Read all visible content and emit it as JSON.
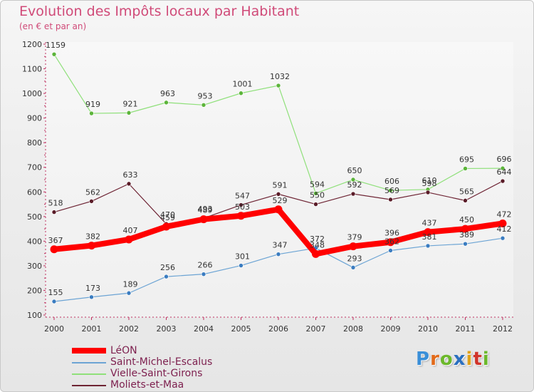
{
  "title": "Evolution des Impôts locaux par Habitant",
  "subtitle": "(en € et par an)",
  "logo": {
    "text": "Proxiti",
    "colors": [
      "#3a8fd8",
      "#e26a1a",
      "#6bb82a",
      "#2a6fc0",
      "#e0a21a",
      "#d0342a",
      "#6bb82a"
    ]
  },
  "chart_data": {
    "type": "line",
    "title": "Evolution des Impôts locaux par Habitant",
    "ylabel": "(en € et par an)",
    "xlabel": "",
    "ylim": [
      100,
      1200
    ],
    "yticks": [
      100,
      200,
      300,
      400,
      500,
      600,
      700,
      800,
      900,
      1000,
      1100,
      1200
    ],
    "categories": [
      "2000",
      "2001",
      "2002",
      "2003",
      "2004",
      "2005",
      "2006",
      "2007",
      "2008",
      "2009",
      "2010",
      "2011",
      "2012"
    ],
    "grid": false,
    "legend": "bottom-left",
    "series": [
      {
        "name": "Vielle-Saint-Girons",
        "color": "#8fe07a",
        "marker": "#5cb43a",
        "values": [
          1159,
          919,
          921,
          963,
          953,
          1001,
          1032,
          594,
          650,
          606,
          610,
          695,
          696
        ],
        "labels": [
          "1159",
          "919",
          "921",
          "963",
          "953",
          "1001",
          "1032",
          "594",
          "650",
          "606",
          "610",
          "695",
          "696"
        ]
      },
      {
        "name": "Moliets-et-Maa",
        "color": "#6e2434",
        "marker": "#5a1c28",
        "values": [
          518,
          562,
          633,
          470,
          493,
          547,
          591,
          550,
          592,
          569,
          598,
          565,
          644
        ],
        "labels": [
          "518",
          "562",
          "633",
          "470",
          "493",
          "547",
          "591",
          "550",
          "592",
          "569",
          "598",
          "565",
          "644"
        ]
      },
      {
        "name": "Saint-Michel-Escalus",
        "color": "#6ca4d4",
        "marker": "#3a7cc0",
        "values": [
          155,
          173,
          189,
          256,
          266,
          301,
          347,
          372,
          293,
          362,
          381,
          389,
          412
        ],
        "labels": [
          "155",
          "173",
          "189",
          "256",
          "266",
          "301",
          "347",
          "372",
          "293",
          "362",
          "381",
          "389",
          "412"
        ]
      },
      {
        "name": "LéON",
        "color": "#ff0000",
        "marker": "#ff0000",
        "values": [
          367,
          382,
          407,
          459,
          489,
          503,
          529,
          348,
          379,
          396,
          437,
          450,
          472
        ],
        "labels": [
          "367",
          "382",
          "407",
          "459",
          "489",
          "503",
          "529",
          "348",
          "379",
          "396",
          "437",
          "450",
          "472"
        ]
      }
    ]
  },
  "legend": [
    {
      "label": "LéON",
      "color": "#ff0000",
      "weight": 8
    },
    {
      "label": "Saint-Michel-Escalus",
      "color": "#6ca4d4",
      "weight": 2
    },
    {
      "label": "Vielle-Saint-Girons",
      "color": "#8fe07a",
      "weight": 2
    },
    {
      "label": "Moliets-et-Maa",
      "color": "#6e2434",
      "weight": 2
    }
  ]
}
